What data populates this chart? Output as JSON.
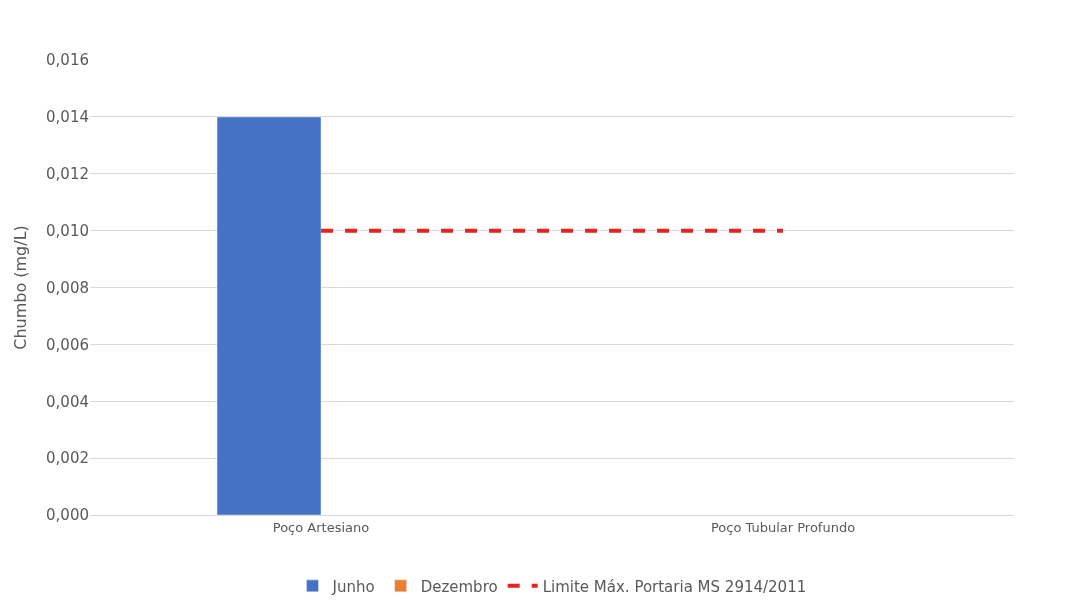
{
  "chart_data": {
    "type": "bar",
    "ylabel": "Chumbo (mg/L)",
    "categories": [
      "Poço Artesiano",
      "Poço Tubular Profundo"
    ],
    "series": [
      {
        "name": "Junho",
        "color": "#4472c4",
        "values": [
          0.014,
          null
        ]
      },
      {
        "name": "Dezembro",
        "color": "#ed7d31",
        "values": [
          null,
          null
        ]
      },
      {
        "name": "Limite Máx. Portaria MS 2914/2011",
        "type": "line",
        "line_style": "dashed",
        "color": "#e8231f",
        "values": [
          0.01,
          0.01
        ]
      }
    ],
    "ylim": [
      0,
      0.016
    ],
    "yticks": [
      {
        "value": 0,
        "label": "0,000"
      },
      {
        "value": 0.002,
        "label": "0,002"
      },
      {
        "value": 0.004,
        "label": "0,004"
      },
      {
        "value": 0.006,
        "label": "0,006"
      },
      {
        "value": 0.008,
        "label": "0,008"
      },
      {
        "value": 0.01,
        "label": "0,010"
      },
      {
        "value": 0.012,
        "label": "0,012"
      },
      {
        "value": 0.014,
        "label": "0,014"
      },
      {
        "value": 0.016,
        "label": "0,016"
      }
    ],
    "grid": "y",
    "legend": "bottom",
    "marker": "none"
  }
}
